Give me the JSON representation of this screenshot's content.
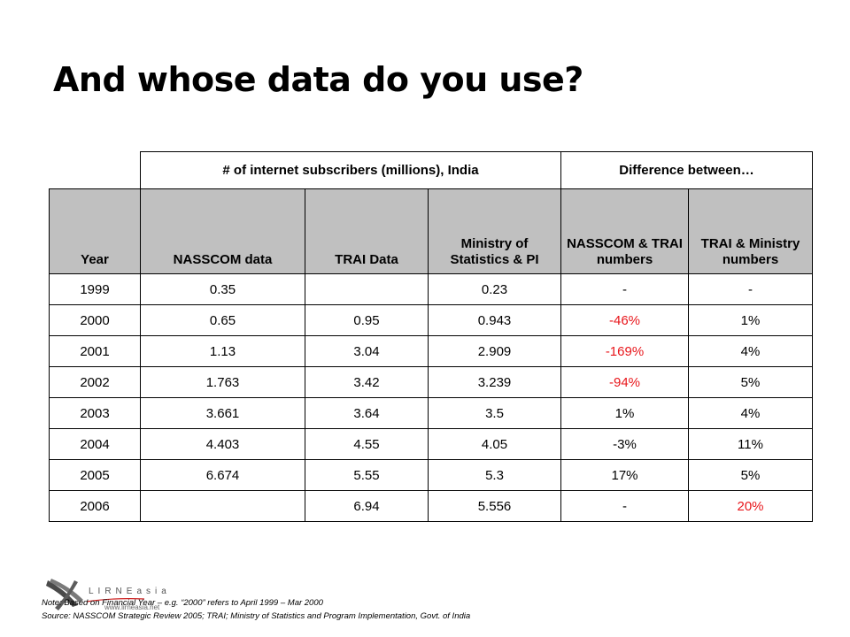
{
  "title": "And whose data do you use?",
  "table": {
    "group_headers": {
      "subscribers": "# of internet subscribers (millions), India",
      "difference": "Difference between…"
    },
    "columns": [
      "Year",
      "NASSCOM data",
      "TRAI Data",
      "Ministry of Statistics & PI",
      "NASSCOM & TRAI numbers",
      "TRAI & Ministry numbers"
    ],
    "rows": [
      [
        "1999",
        "0.35",
        "",
        "0.23",
        "-",
        "-"
      ],
      [
        "2000",
        "0.65",
        "0.95",
        "0.943",
        "-46%",
        "1%"
      ],
      [
        "2001",
        "1.13",
        "3.04",
        "2.909",
        "-169%",
        "4%"
      ],
      [
        "2002",
        "1.763",
        "3.42",
        "3.239",
        "-94%",
        "5%"
      ],
      [
        "2003",
        "3.661",
        "3.64",
        "3.5",
        "1%",
        "4%"
      ],
      [
        "2004",
        "4.403",
        "4.55",
        "4.05",
        "-3%",
        "11%"
      ],
      [
        "2005",
        "6.674",
        "5.55",
        "5.3",
        "17%",
        "5%"
      ],
      [
        "2006",
        "",
        "6.94",
        "5.556",
        "-",
        "20%"
      ]
    ],
    "highlight_color": "#e8161b"
  },
  "logo": {
    "text": "LIRNEasia",
    "url": "www.lirneasia.net"
  },
  "footer": {
    "note": "Note: Based on Financial Year – e.g. “2000” refers to April 1999 – Mar 2000",
    "source": "Source: NASSCOM Strategic Review 2005; TRAI; Ministry of Statistics and Program Implementation, Govt. of India"
  }
}
